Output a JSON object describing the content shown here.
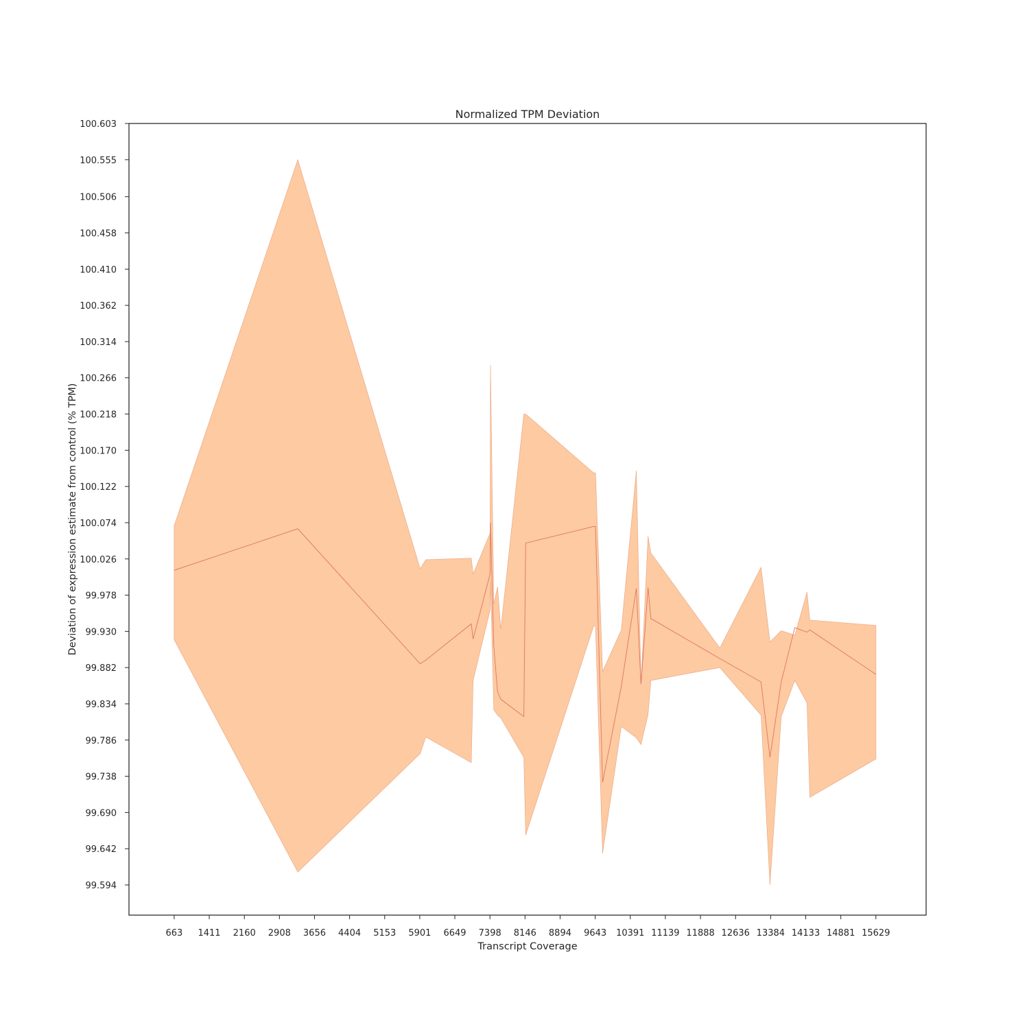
{
  "chart_data": {
    "type": "line",
    "title": "Normalized TPM Deviation",
    "xlabel": "Transcript Coverage",
    "ylabel": "Deviation of expression estimate from control (% TPM)",
    "xlim": [
      -301,
      16700
    ],
    "ylim": [
      99.554,
      100.603
    ],
    "x_ticks": [
      663,
      1411,
      2160,
      2908,
      3656,
      4404,
      5153,
      5901,
      6649,
      7398,
      8146,
      8894,
      9643,
      10391,
      11139,
      11888,
      12636,
      13384,
      14133,
      14881,
      15629
    ],
    "x_tick_labels": [
      "663",
      "1411",
      "2160",
      "2908",
      "3656",
      "4404",
      "5153",
      "5901",
      "6649",
      "7398",
      "8146",
      "8894",
      "9643",
      "10391",
      "11139",
      "11888",
      "12636",
      "13384",
      "14133",
      "14881",
      "15629"
    ],
    "y_ticks": [
      99.594,
      99.642,
      99.69,
      99.738,
      99.786,
      99.834,
      99.882,
      99.93,
      99.978,
      100.026,
      100.074,
      100.122,
      100.17,
      100.218,
      100.266,
      100.314,
      100.362,
      100.41,
      100.458,
      100.506,
      100.555,
      100.603
    ],
    "y_tick_labels": [
      "99.594",
      "99.642",
      "99.690",
      "99.738",
      "99.786",
      "99.834",
      "99.882",
      "99.930",
      "99.978",
      "100.026",
      "100.074",
      "100.122",
      "100.170",
      "100.218",
      "100.266",
      "100.314",
      "100.362",
      "100.410",
      "100.458",
      "100.506",
      "100.555",
      "100.603"
    ],
    "grid": false,
    "colors": {
      "band": "#fdcaa2",
      "line": "#e0765b",
      "band_edge": "#e8a27e"
    },
    "series": [
      {
        "x": [
          663,
          3300,
          5910,
          6030,
          7000,
          7040,
          7400,
          7410,
          7480,
          7560,
          7630,
          8120,
          8160,
          9610,
          9650,
          9800,
          10200,
          10520,
          10620,
          10770,
          10830,
          12300,
          13180,
          13370,
          13610,
          13900,
          14160,
          14220,
          15630
        ],
        "y": [
          100.011,
          100.066,
          99.887,
          99.892,
          99.94,
          99.92,
          100.006,
          100.074,
          99.91,
          99.85,
          99.84,
          99.817,
          100.047,
          100.069,
          100.069,
          99.73,
          99.857,
          99.987,
          99.86,
          99.988,
          99.947,
          99.894,
          99.863,
          99.763,
          99.863,
          99.935,
          99.929,
          99.932,
          99.873
        ],
        "upper": [
          100.07,
          100.555,
          100.013,
          100.025,
          100.027,
          100.006,
          100.06,
          100.283,
          99.966,
          99.989,
          99.933,
          100.218,
          100.218,
          100.14,
          100.14,
          99.877,
          99.932,
          100.143,
          99.86,
          100.056,
          100.034,
          99.908,
          100.015,
          99.916,
          99.931,
          99.925,
          99.982,
          99.945,
          99.938
        ],
        "lower": [
          99.919,
          99.611,
          99.768,
          99.79,
          99.756,
          99.865,
          99.958,
          99.998,
          99.826,
          99.819,
          99.815,
          99.763,
          99.66,
          99.937,
          99.937,
          99.636,
          99.804,
          99.789,
          99.78,
          99.82,
          99.865,
          99.882,
          99.819,
          99.594,
          99.817,
          99.865,
          99.835,
          99.71,
          99.761
        ]
      }
    ]
  }
}
